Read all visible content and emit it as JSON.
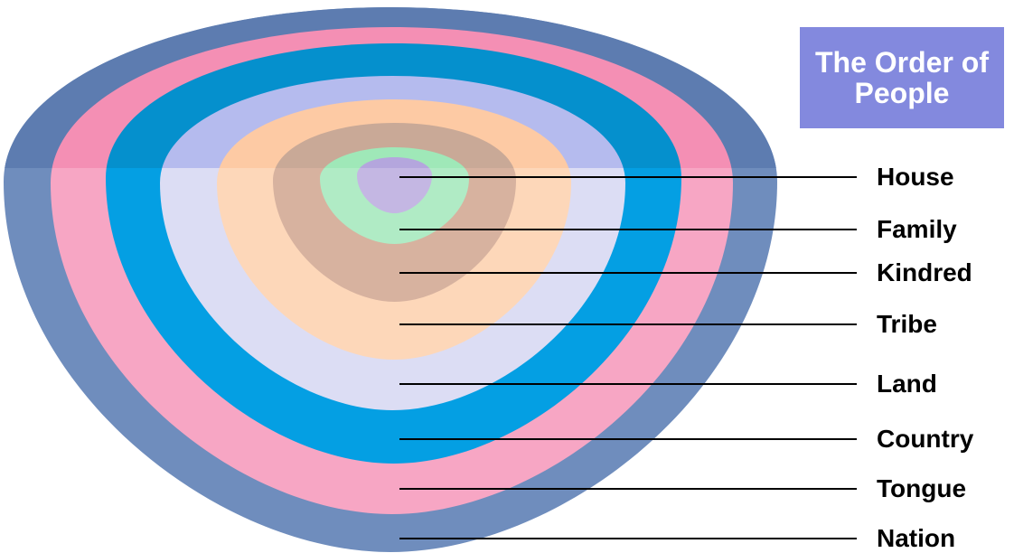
{
  "title": {
    "line1": "The Order of",
    "line2": "People"
  },
  "colors": {
    "title_box": "#8389de",
    "rings": [
      "#6f8dbd",
      "#f7a6c4",
      "#049fe3",
      "#dcddf4",
      "#fdd7b9",
      "#d7b29f",
      "#b0ebc5",
      "#c4b7e3"
    ],
    "rings_top": [
      "#5d7cb0",
      "#f48fb4",
      "#0590cd",
      "#b5bbee",
      "#fdcaa4",
      "#c9a997",
      "#9fe8b8",
      "#b4a6dd"
    ],
    "line": "#000000"
  },
  "levels": [
    {
      "label": "Nation"
    },
    {
      "label": "Tongue"
    },
    {
      "label": "Country"
    },
    {
      "label": "Land"
    },
    {
      "label": "Tribe"
    },
    {
      "label": "Kindred"
    },
    {
      "label": "Family"
    },
    {
      "label": "House"
    }
  ]
}
